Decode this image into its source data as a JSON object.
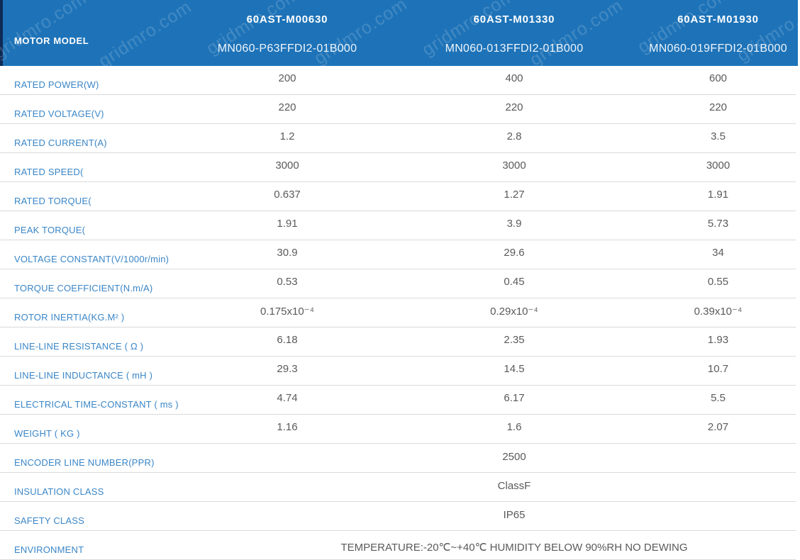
{
  "header": {
    "row_label": "MOTOR MODEL",
    "columns": [
      {
        "model": "60AST-M00630",
        "part_number": "MN060-P63FFDI2-01B000"
      },
      {
        "model": "60AST-M01330",
        "part_number": "MN060-013FFDI2-01B000"
      },
      {
        "model": "60AST-M01930",
        "part_number": "MN060-019FFDI2-01B000"
      }
    ]
  },
  "rows": [
    {
      "label": "RATED POWER(W)",
      "values": [
        "200",
        "400",
        "600"
      ]
    },
    {
      "label": "RATED VOLTAGE(V)",
      "values": [
        "220",
        "220",
        "220"
      ]
    },
    {
      "label": "RATED CURRENT(A)",
      "values": [
        "1.2",
        "2.8",
        "3.5"
      ]
    },
    {
      "label": "RATED SPEED(",
      "values": [
        "3000",
        "3000",
        "3000"
      ]
    },
    {
      "label": "RATED TORQUE(",
      "values": [
        "0.637",
        "1.27",
        "1.91"
      ]
    },
    {
      "label": "PEAK TORQUE(",
      "values": [
        "1.91",
        "3.9",
        "5.73"
      ]
    },
    {
      "label": "VOLTAGE CONSTANT(V/1000r/min)",
      "values": [
        "30.9",
        "29.6",
        "34"
      ]
    },
    {
      "label": "TORQUE COEFFICIENT(N.m/A)",
      "values": [
        "0.53",
        "0.45",
        "0.55"
      ]
    },
    {
      "label": "ROTOR INERTIA(KG.M² )",
      "values": [
        "0.175x10⁻⁴",
        "0.29x10⁻⁴",
        "0.39x10⁻⁴"
      ]
    },
    {
      "label": "LINE-LINE RESISTANCE ( Ω )",
      "values": [
        "6.18",
        "2.35",
        "1.93"
      ]
    },
    {
      "label": "LINE-LINE INDUCTANCE ( mH )",
      "values": [
        "29.3",
        "14.5",
        "10.7"
      ]
    },
    {
      "label": "ELECTRICAL TIME-CONSTANT ( ms )",
      "values": [
        "4.74",
        "6.17",
        "5.5"
      ]
    },
    {
      "label": "WEIGHT ( KG )",
      "values": [
        "1.16",
        "1.6",
        "2.07"
      ]
    },
    {
      "label": "ENCODER LINE NUMBER(PPR)",
      "span_value": "2500"
    },
    {
      "label": "INSULATION CLASS",
      "span_value": "ClassF"
    },
    {
      "label": "SAFETY CLASS",
      "span_value": "IP65"
    },
    {
      "label": "ENVIRONMENT",
      "span_value": "TEMPERATURE:-20℃~+40℃  HUMIDITY BELOW 90%RH NO DEWING",
      "low": true
    }
  ],
  "watermark": {
    "text": "gridmro.com"
  },
  "colors": {
    "header_background": "#1e73b8",
    "header_edge_strip": "#0e2b56",
    "label_text": "#3a86c7",
    "value_text": "#5a5a5c",
    "row_divider": "#dadada"
  }
}
